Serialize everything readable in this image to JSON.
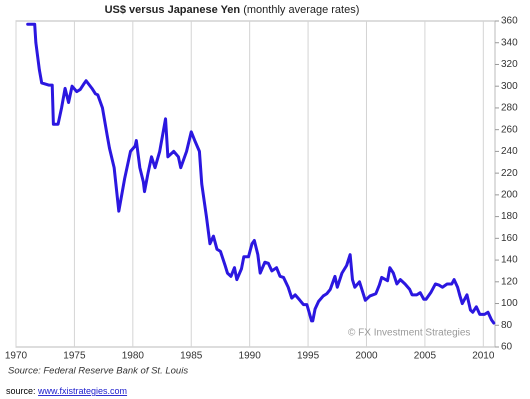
{
  "chart_data": {
    "type": "line",
    "title": "US$ versus Japanese Yen",
    "subtitle": "(monthly average  rates)",
    "annotation": "© FX Investment Strategies",
    "source": "Source: Federal Reserve Bank of St. Louis",
    "footer_label": "source:",
    "footer_link": "www.fxistrategies.com",
    "color": "#2b17e0",
    "grid": true,
    "xlim": [
      1970,
      2011
    ],
    "xticks": [
      1970,
      1975,
      1980,
      1985,
      1990,
      1995,
      2000,
      2005,
      2010
    ],
    "ylim": [
      60,
      360
    ],
    "yticks": [
      60,
      80,
      100,
      120,
      140,
      160,
      180,
      200,
      220,
      240,
      260,
      280,
      300,
      320,
      340,
      360
    ],
    "x": [
      1971.0,
      1971.6,
      1971.7,
      1972.0,
      1972.2,
      1972.8,
      1973.1,
      1973.2,
      1973.6,
      1973.9,
      1974.2,
      1974.5,
      1974.8,
      1975.2,
      1975.5,
      1975.8,
      1976.0,
      1976.5,
      1976.8,
      1977.0,
      1977.4,
      1977.8,
      1978.0,
      1978.4,
      1978.8,
      1979.0,
      1979.3,
      1979.8,
      1980.2,
      1980.3,
      1980.6,
      1980.9,
      1981.0,
      1981.3,
      1981.6,
      1981.9,
      1982.3,
      1982.8,
      1983.0,
      1983.5,
      1983.9,
      1984.1,
      1984.6,
      1985.0,
      1985.3,
      1985.7,
      1985.9,
      1986.3,
      1986.6,
      1986.9,
      1987.2,
      1987.5,
      1987.9,
      1988.1,
      1988.4,
      1988.7,
      1988.9,
      1989.3,
      1989.5,
      1989.9,
      1990.2,
      1990.4,
      1990.7,
      1990.9,
      1991.3,
      1991.6,
      1991.9,
      1992.3,
      1992.6,
      1992.9,
      1993.3,
      1993.6,
      1993.9,
      1994.3,
      1994.6,
      1994.9,
      1995.3,
      1995.4,
      1995.6,
      1995.9,
      1996.3,
      1996.6,
      1996.9,
      1997.3,
      1997.5,
      1997.9,
      1998.3,
      1998.6,
      1998.8,
      1999.0,
      1999.4,
      1999.9,
      2000.3,
      2000.8,
      2001.1,
      2001.3,
      2001.8,
      2002.0,
      2002.3,
      2002.6,
      2002.9,
      2003.3,
      2003.7,
      2003.9,
      2004.3,
      2004.6,
      2004.9,
      2005.1,
      2005.5,
      2005.9,
      2006.2,
      2006.5,
      2006.9,
      2007.3,
      2007.5,
      2007.8,
      2008.0,
      2008.2,
      2008.6,
      2008.9,
      2009.1,
      2009.4,
      2009.7,
      2010.1,
      2010.4,
      2010.7,
      2010.9
    ],
    "values": [
      357,
      357,
      340,
      315,
      303,
      301,
      301,
      265,
      265,
      280,
      298,
      285,
      300,
      295,
      297,
      302,
      305,
      298,
      293,
      292,
      280,
      255,
      243,
      225,
      185,
      197,
      215,
      240,
      245,
      250,
      225,
      212,
      203,
      220,
      235,
      225,
      240,
      270,
      235,
      240,
      235,
      225,
      240,
      258,
      250,
      240,
      210,
      180,
      155,
      162,
      150,
      148,
      135,
      128,
      125,
      133,
      122,
      132,
      143,
      143,
      155,
      158,
      145,
      128,
      138,
      137,
      130,
      133,
      125,
      124,
      115,
      105,
      108,
      103,
      99,
      99,
      84,
      84,
      95,
      102,
      107,
      109,
      113,
      125,
      115,
      128,
      135,
      145,
      122,
      115,
      120,
      103,
      107,
      109,
      117,
      124,
      121,
      133,
      128,
      118,
      122,
      118,
      113,
      108,
      108,
      110,
      104,
      104,
      110,
      118,
      117,
      115,
      118,
      118,
      122,
      115,
      107,
      100,
      108,
      94,
      92,
      97,
      90,
      90,
      92,
      85,
      82
    ]
  }
}
